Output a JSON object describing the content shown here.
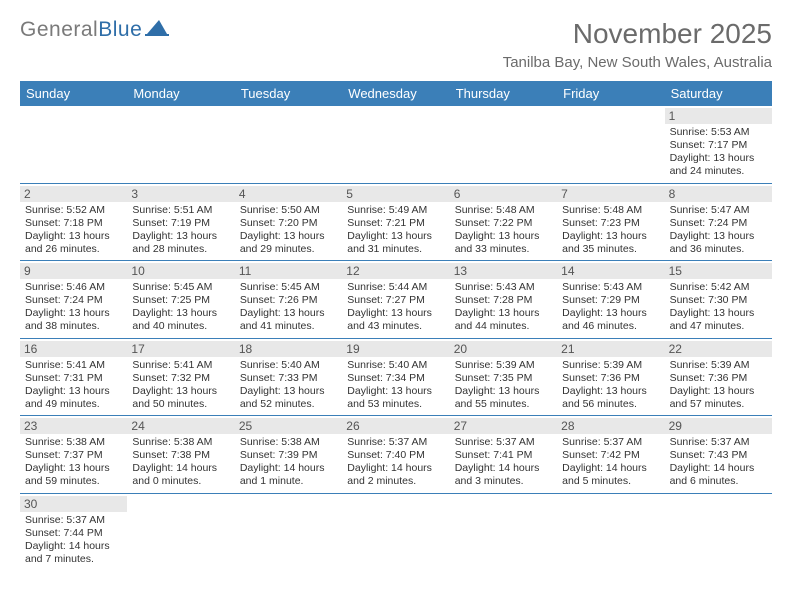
{
  "brand": {
    "part1": "General",
    "part2": "Blue"
  },
  "title": "November 2025",
  "subtitle": "Tanilba Bay, New South Wales, Australia",
  "dayHeaders": [
    "Sunday",
    "Monday",
    "Tuesday",
    "Wednesday",
    "Thursday",
    "Friday",
    "Saturday"
  ],
  "colors": {
    "headerBg": "#3b7fb8",
    "headerText": "#ffffff",
    "rowDivider": "#3b7fb8",
    "dayNumBg": "#e8e8e8",
    "titleColor": "#6b6b6b",
    "text": "#333333"
  },
  "weeks": [
    [
      null,
      null,
      null,
      null,
      null,
      null,
      {
        "n": "1",
        "sr": "Sunrise: 5:53 AM",
        "ss": "Sunset: 7:17 PM",
        "d1": "Daylight: 13 hours",
        "d2": "and 24 minutes."
      }
    ],
    [
      {
        "n": "2",
        "sr": "Sunrise: 5:52 AM",
        "ss": "Sunset: 7:18 PM",
        "d1": "Daylight: 13 hours",
        "d2": "and 26 minutes."
      },
      {
        "n": "3",
        "sr": "Sunrise: 5:51 AM",
        "ss": "Sunset: 7:19 PM",
        "d1": "Daylight: 13 hours",
        "d2": "and 28 minutes."
      },
      {
        "n": "4",
        "sr": "Sunrise: 5:50 AM",
        "ss": "Sunset: 7:20 PM",
        "d1": "Daylight: 13 hours",
        "d2": "and 29 minutes."
      },
      {
        "n": "5",
        "sr": "Sunrise: 5:49 AM",
        "ss": "Sunset: 7:21 PM",
        "d1": "Daylight: 13 hours",
        "d2": "and 31 minutes."
      },
      {
        "n": "6",
        "sr": "Sunrise: 5:48 AM",
        "ss": "Sunset: 7:22 PM",
        "d1": "Daylight: 13 hours",
        "d2": "and 33 minutes."
      },
      {
        "n": "7",
        "sr": "Sunrise: 5:48 AM",
        "ss": "Sunset: 7:23 PM",
        "d1": "Daylight: 13 hours",
        "d2": "and 35 minutes."
      },
      {
        "n": "8",
        "sr": "Sunrise: 5:47 AM",
        "ss": "Sunset: 7:24 PM",
        "d1": "Daylight: 13 hours",
        "d2": "and 36 minutes."
      }
    ],
    [
      {
        "n": "9",
        "sr": "Sunrise: 5:46 AM",
        "ss": "Sunset: 7:24 PM",
        "d1": "Daylight: 13 hours",
        "d2": "and 38 minutes."
      },
      {
        "n": "10",
        "sr": "Sunrise: 5:45 AM",
        "ss": "Sunset: 7:25 PM",
        "d1": "Daylight: 13 hours",
        "d2": "and 40 minutes."
      },
      {
        "n": "11",
        "sr": "Sunrise: 5:45 AM",
        "ss": "Sunset: 7:26 PM",
        "d1": "Daylight: 13 hours",
        "d2": "and 41 minutes."
      },
      {
        "n": "12",
        "sr": "Sunrise: 5:44 AM",
        "ss": "Sunset: 7:27 PM",
        "d1": "Daylight: 13 hours",
        "d2": "and 43 minutes."
      },
      {
        "n": "13",
        "sr": "Sunrise: 5:43 AM",
        "ss": "Sunset: 7:28 PM",
        "d1": "Daylight: 13 hours",
        "d2": "and 44 minutes."
      },
      {
        "n": "14",
        "sr": "Sunrise: 5:43 AM",
        "ss": "Sunset: 7:29 PM",
        "d1": "Daylight: 13 hours",
        "d2": "and 46 minutes."
      },
      {
        "n": "15",
        "sr": "Sunrise: 5:42 AM",
        "ss": "Sunset: 7:30 PM",
        "d1": "Daylight: 13 hours",
        "d2": "and 47 minutes."
      }
    ],
    [
      {
        "n": "16",
        "sr": "Sunrise: 5:41 AM",
        "ss": "Sunset: 7:31 PM",
        "d1": "Daylight: 13 hours",
        "d2": "and 49 minutes."
      },
      {
        "n": "17",
        "sr": "Sunrise: 5:41 AM",
        "ss": "Sunset: 7:32 PM",
        "d1": "Daylight: 13 hours",
        "d2": "and 50 minutes."
      },
      {
        "n": "18",
        "sr": "Sunrise: 5:40 AM",
        "ss": "Sunset: 7:33 PM",
        "d1": "Daylight: 13 hours",
        "d2": "and 52 minutes."
      },
      {
        "n": "19",
        "sr": "Sunrise: 5:40 AM",
        "ss": "Sunset: 7:34 PM",
        "d1": "Daylight: 13 hours",
        "d2": "and 53 minutes."
      },
      {
        "n": "20",
        "sr": "Sunrise: 5:39 AM",
        "ss": "Sunset: 7:35 PM",
        "d1": "Daylight: 13 hours",
        "d2": "and 55 minutes."
      },
      {
        "n": "21",
        "sr": "Sunrise: 5:39 AM",
        "ss": "Sunset: 7:36 PM",
        "d1": "Daylight: 13 hours",
        "d2": "and 56 minutes."
      },
      {
        "n": "22",
        "sr": "Sunrise: 5:39 AM",
        "ss": "Sunset: 7:36 PM",
        "d1": "Daylight: 13 hours",
        "d2": "and 57 minutes."
      }
    ],
    [
      {
        "n": "23",
        "sr": "Sunrise: 5:38 AM",
        "ss": "Sunset: 7:37 PM",
        "d1": "Daylight: 13 hours",
        "d2": "and 59 minutes."
      },
      {
        "n": "24",
        "sr": "Sunrise: 5:38 AM",
        "ss": "Sunset: 7:38 PM",
        "d1": "Daylight: 14 hours",
        "d2": "and 0 minutes."
      },
      {
        "n": "25",
        "sr": "Sunrise: 5:38 AM",
        "ss": "Sunset: 7:39 PM",
        "d1": "Daylight: 14 hours",
        "d2": "and 1 minute."
      },
      {
        "n": "26",
        "sr": "Sunrise: 5:37 AM",
        "ss": "Sunset: 7:40 PM",
        "d1": "Daylight: 14 hours",
        "d2": "and 2 minutes."
      },
      {
        "n": "27",
        "sr": "Sunrise: 5:37 AM",
        "ss": "Sunset: 7:41 PM",
        "d1": "Daylight: 14 hours",
        "d2": "and 3 minutes."
      },
      {
        "n": "28",
        "sr": "Sunrise: 5:37 AM",
        "ss": "Sunset: 7:42 PM",
        "d1": "Daylight: 14 hours",
        "d2": "and 5 minutes."
      },
      {
        "n": "29",
        "sr": "Sunrise: 5:37 AM",
        "ss": "Sunset: 7:43 PM",
        "d1": "Daylight: 14 hours",
        "d2": "and 6 minutes."
      }
    ],
    [
      {
        "n": "30",
        "sr": "Sunrise: 5:37 AM",
        "ss": "Sunset: 7:44 PM",
        "d1": "Daylight: 14 hours",
        "d2": "and 7 minutes."
      },
      null,
      null,
      null,
      null,
      null,
      null
    ]
  ]
}
